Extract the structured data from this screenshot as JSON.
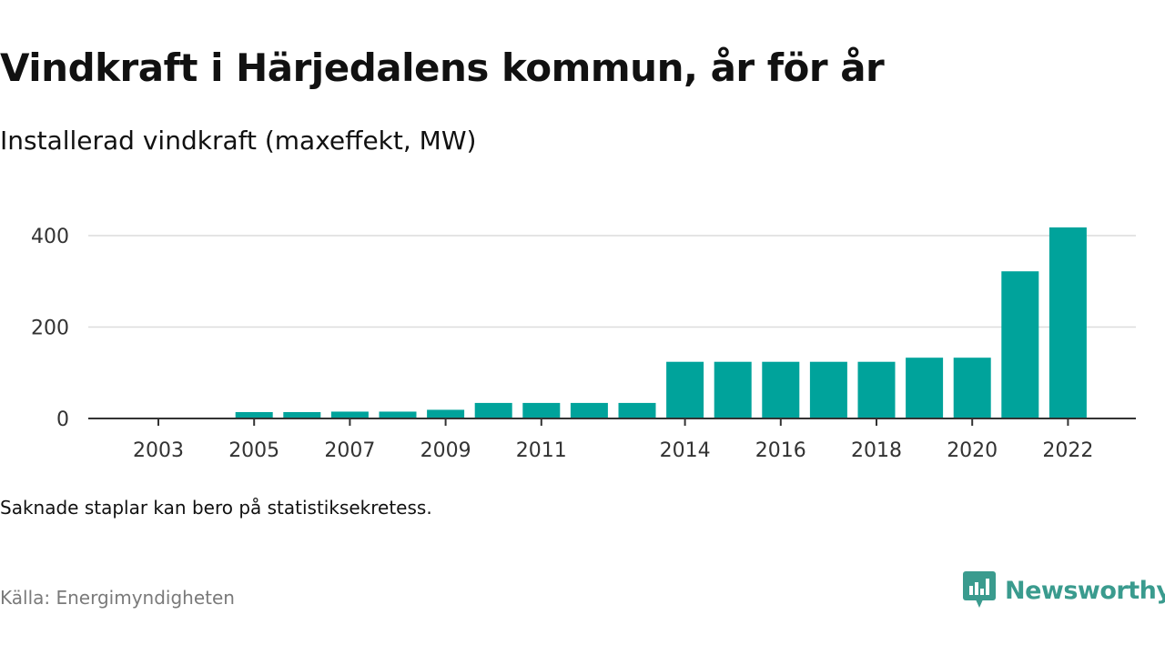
{
  "header": {
    "title": "Vindkraft i Härjedalens kommun, år för år",
    "subtitle": "Installerad vindkraft (maxeffekt, MW)"
  },
  "footer": {
    "note": "Saknade staplar kan bero på statistiksekretess.",
    "source": "Källa: Energimyndigheten",
    "brand": "Newsworthy"
  },
  "colors": {
    "bar": "#00a39b",
    "grid": "#dcdcdc",
    "axis": "#333333",
    "brand": "#3a9b8e"
  },
  "icons": {
    "brand": "bar-chart-speech-bubble-icon"
  },
  "chart_data": {
    "type": "bar",
    "title": "Vindkraft i Härjedalens kommun, år för år",
    "subtitle": "Installerad vindkraft (maxeffekt, MW)",
    "xlabel": "",
    "ylabel": "",
    "categories": [
      "2003",
      "2004",
      "2005",
      "2006",
      "2007",
      "2008",
      "2009",
      "2010",
      "2011",
      "2012",
      "2013",
      "2014",
      "2015",
      "2016",
      "2017",
      "2018",
      "2019",
      "2020",
      "2021",
      "2022"
    ],
    "values": [
      0,
      0,
      14,
      14,
      15,
      15,
      19,
      34,
      34,
      34,
      34,
      124,
      124,
      124,
      124,
      124,
      133,
      133,
      322,
      418
    ],
    "x_tick_labels": [
      "2003",
      "2005",
      "2007",
      "2009",
      "2011",
      "2014",
      "2016",
      "2018",
      "2020",
      "2022"
    ],
    "y_ticks": [
      0,
      200,
      400
    ],
    "ylim": [
      0,
      420
    ],
    "grid": true,
    "legend": "none"
  }
}
